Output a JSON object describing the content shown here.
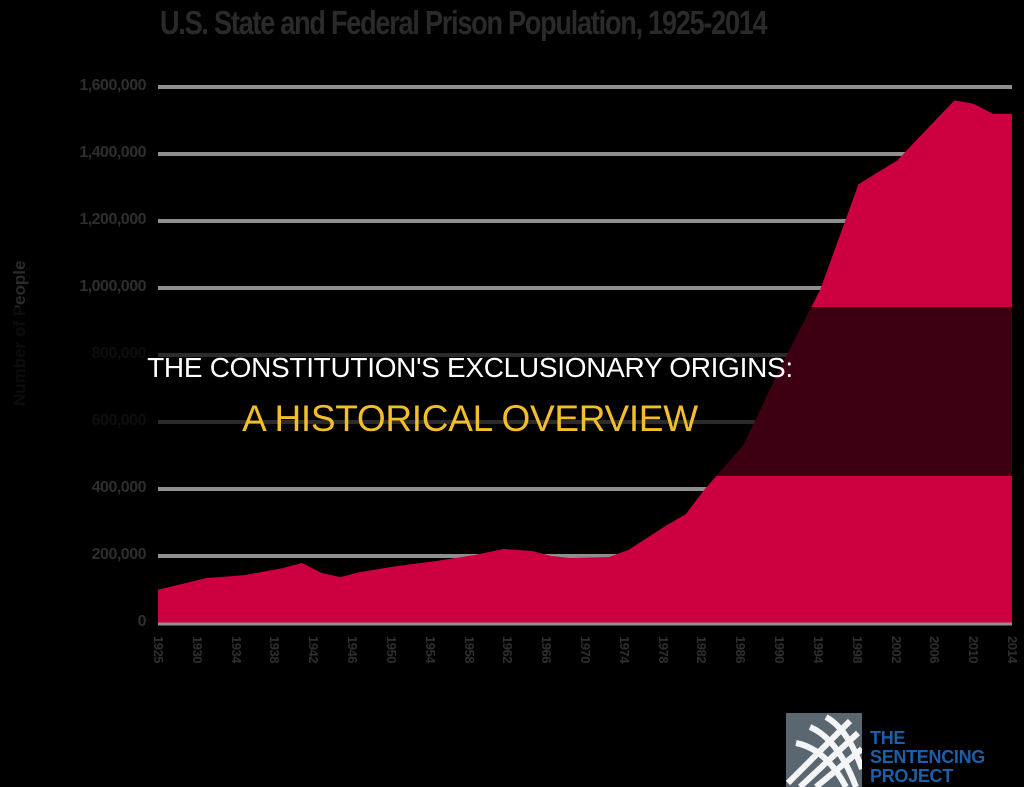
{
  "chart": {
    "title": "U.S. State and Federal Prison Population, 1925-2014",
    "y_axis_label": "Number of People",
    "y_ticks": [
      "0",
      "200,000",
      "400,000",
      "600,000",
      "800,000",
      "1,000,000",
      "1,200,000",
      "1,400,000",
      "1,600,000"
    ],
    "x_ticks": [
      "1925",
      "1930",
      "1934",
      "1938",
      "1942",
      "1946",
      "1950",
      "1954",
      "1958",
      "1962",
      "1966",
      "1970",
      "1974",
      "1978",
      "1982",
      "1986",
      "1990",
      "1994",
      "1998",
      "2002",
      "2006",
      "2010",
      "2014"
    ],
    "fill_color": "#cc0040",
    "grid_color": "#8f8f8f"
  },
  "overlay": {
    "headline_line1": "THE CONSTITUTION'S EXCLUSIONARY ORIGINS:",
    "headline_line2": "A HISTORICAL OVERVIEW",
    "line1_color": "#ffffff",
    "line2_color": "#f4be2a"
  },
  "logo": {
    "line1": "THE",
    "line2": "SENTENCING",
    "line3": "PROJECT",
    "color": "#1c5fa8"
  },
  "chart_data": {
    "type": "area",
    "title": "U.S. State and Federal Prison Population, 1925-2014",
    "xlabel": "",
    "ylabel": "Number of People",
    "ylim": [
      0,
      1600000
    ],
    "xlim": [
      1925,
      2014
    ],
    "grid": true,
    "legend": null,
    "x": [
      1925,
      1930,
      1934,
      1938,
      1940,
      1942,
      1944,
      1946,
      1950,
      1954,
      1958,
      1961,
      1964,
      1966,
      1968,
      1972,
      1974,
      1978,
      1980,
      1982,
      1986,
      1990,
      1994,
      1998,
      2002,
      2006,
      2008,
      2010,
      2012,
      2014
    ],
    "series": [
      {
        "name": "Prison population",
        "values": [
          99000,
          134000,
          143000,
          164000,
          179000,
          150000,
          137000,
          152000,
          170000,
          185000,
          203000,
          221000,
          215000,
          200000,
          194000,
          197000,
          218000,
          292000,
          325000,
          400000,
          531000,
          771000,
          994000,
          1310000,
          1380000,
          1500000,
          1560000,
          1550000,
          1520000,
          1520000
        ]
      }
    ],
    "x_tick_labels": [
      "1925",
      "1930",
      "1934",
      "1938",
      "1942",
      "1946",
      "1950",
      "1954",
      "1958",
      "1962",
      "1966",
      "1970",
      "1974",
      "1978",
      "1982",
      "1986",
      "1990",
      "1994",
      "1998",
      "2002",
      "2006",
      "2010",
      "2014"
    ],
    "y_tick_labels": [
      "0",
      "200,000",
      "400,000",
      "600,000",
      "800,000",
      "1,000,000",
      "1,200,000",
      "1,400,000",
      "1,600,000"
    ]
  }
}
